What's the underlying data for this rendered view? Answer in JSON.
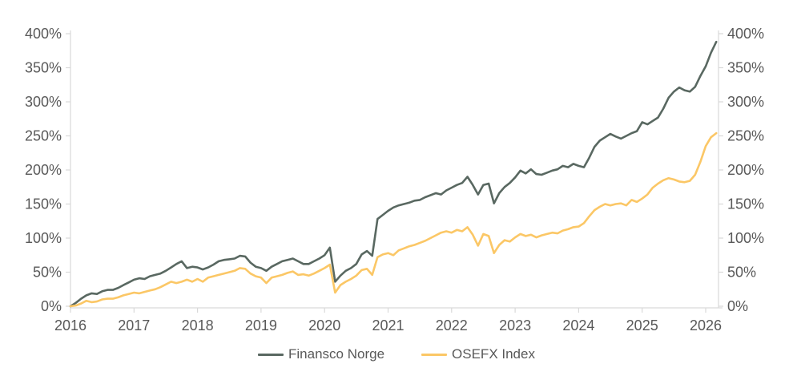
{
  "chart_data": {
    "type": "line",
    "title": "",
    "xlabel": "",
    "ylabel": "",
    "grid": false,
    "background": "#ffffff",
    "axis_color": "#d9d9d9",
    "label_color": "#595959",
    "legend_position": "bottom-center",
    "ylim": [
      0,
      400
    ],
    "y_ticks": [
      0,
      50,
      100,
      150,
      200,
      250,
      300,
      350,
      400
    ],
    "y_tick_suffix": "%",
    "y_axis_sides": [
      "left",
      "right"
    ],
    "x_tick_labels": [
      "2016",
      "2017",
      "2018",
      "2019",
      "2020",
      "2021",
      "2022",
      "2023",
      "2024",
      "2025",
      "2026"
    ],
    "x_start_year": 2016,
    "points_per_year": 12,
    "series": [
      {
        "name": "Finansco Norge",
        "color": "#596861",
        "values": [
          0,
          5,
          11,
          16,
          19,
          18,
          22,
          24,
          24,
          27,
          31,
          35,
          39,
          41,
          40,
          44,
          46,
          48,
          52,
          57,
          62,
          66,
          56,
          58,
          57,
          54,
          57,
          61,
          66,
          68,
          69,
          70,
          74,
          73,
          64,
          58,
          56,
          52,
          58,
          62,
          66,
          68,
          70,
          66,
          62,
          62,
          66,
          70,
          75,
          86,
          36,
          45,
          52,
          56,
          62,
          76,
          81,
          74,
          128,
          134,
          140,
          145,
          148,
          150,
          152,
          155,
          156,
          160,
          163,
          166,
          164,
          170,
          174,
          178,
          181,
          190,
          178,
          164,
          178,
          180,
          151,
          166,
          175,
          181,
          189,
          199,
          195,
          201,
          194,
          193,
          196,
          199,
          201,
          206,
          204,
          209,
          206,
          204,
          218,
          234,
          243,
          248,
          253,
          249,
          246,
          250,
          254,
          257,
          270,
          267,
          272,
          277,
          290,
          306,
          315,
          321,
          317,
          315,
          322,
          338,
          352,
          372,
          388
        ]
      },
      {
        "name": "OSEFX Index",
        "color": "#FBC766",
        "values": [
          0,
          1,
          4,
          8,
          6,
          7,
          10,
          11,
          11,
          13,
          16,
          18,
          20,
          19,
          21,
          23,
          25,
          28,
          32,
          36,
          34,
          36,
          39,
          36,
          40,
          36,
          42,
          44,
          46,
          48,
          50,
          52,
          56,
          55,
          48,
          44,
          42,
          34,
          42,
          44,
          46,
          49,
          51,
          46,
          47,
          45,
          48,
          52,
          56,
          61,
          20,
          31,
          36,
          40,
          45,
          53,
          55,
          46,
          72,
          76,
          78,
          75,
          82,
          85,
          88,
          90,
          93,
          96,
          100,
          104,
          108,
          110,
          108,
          112,
          110,
          116,
          105,
          89,
          106,
          103,
          78,
          90,
          97,
          95,
          101,
          106,
          103,
          105,
          101,
          104,
          106,
          108,
          107,
          111,
          113,
          116,
          117,
          122,
          132,
          141,
          146,
          150,
          148,
          150,
          151,
          148,
          156,
          153,
          158,
          164,
          174,
          180,
          185,
          188,
          186,
          183,
          182,
          184,
          193,
          212,
          235,
          248,
          254
        ]
      }
    ]
  },
  "legend": {
    "item1": "Finansco Norge",
    "item2": "OSEFX Index"
  }
}
